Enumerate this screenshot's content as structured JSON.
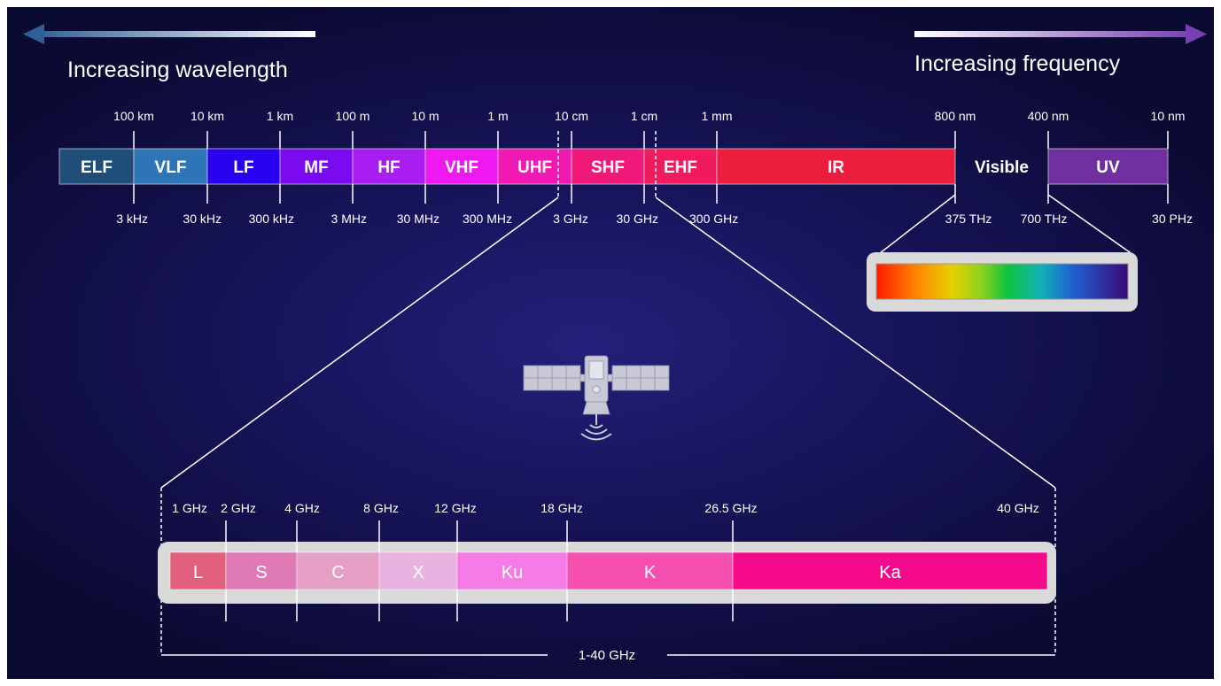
{
  "headers": {
    "left": "Increasing wavelength",
    "right": "Increasing frequency"
  },
  "spectrum_bands": [
    {
      "label": "ELF",
      "color": "#1f4e79"
    },
    {
      "label": "VLF",
      "color": "#2e75b6"
    },
    {
      "label": "LF",
      "color": "#2a00f0"
    },
    {
      "label": "MF",
      "color": "#7a0bf0"
    },
    {
      "label": "HF",
      "color": "#a81ef0"
    },
    {
      "label": "VHF",
      "color": "#f018f0"
    },
    {
      "label": "UHF",
      "color": "#f019b4"
    },
    {
      "label": "SHF",
      "color": "#f0197a"
    },
    {
      "label": "EHF",
      "color": "#f01a5c"
    },
    {
      "label": "IR",
      "color": "#ed1d3e"
    },
    {
      "label": "Visible",
      "color": "none"
    },
    {
      "label": "UV",
      "color": "#7030a0"
    }
  ],
  "wavelength_labels": [
    "100 km",
    "10 km",
    "1 km",
    "100 m",
    "10 m",
    "1 m",
    "10 cm",
    "1 cm",
    "1 mm",
    "800 nm",
    "400 nm",
    "10 nm"
  ],
  "frequency_labels": [
    "3 kHz",
    "30 kHz",
    "300 kHz",
    "3 MHz",
    "30 MHz",
    "300 MHz",
    "3 GHz",
    "30 GHz",
    "300 GHz",
    "375 THz",
    "700 THz",
    "30 PHz"
  ],
  "microwave_bands": [
    {
      "label": "L",
      "color": "#e0607e"
    },
    {
      "label": "S",
      "color": "#e07ab4"
    },
    {
      "label": "C",
      "color": "#e59fc4"
    },
    {
      "label": "X",
      "color": "#e8b3e0"
    },
    {
      "label": "Ku",
      "color": "#f57be6"
    },
    {
      "label": "K",
      "color": "#f54fb0"
    },
    {
      "label": "Ka",
      "color": "#f50a8c"
    }
  ],
  "microwave_labels": [
    "1 GHz",
    "2 GHz",
    "4 GHz",
    "8 GHz",
    "12 GHz",
    "18 GHz",
    "26.5 GHz",
    "40 GHz"
  ],
  "range_label": "1-40 GHz",
  "icons": {
    "satellite": "satellite-icon"
  }
}
